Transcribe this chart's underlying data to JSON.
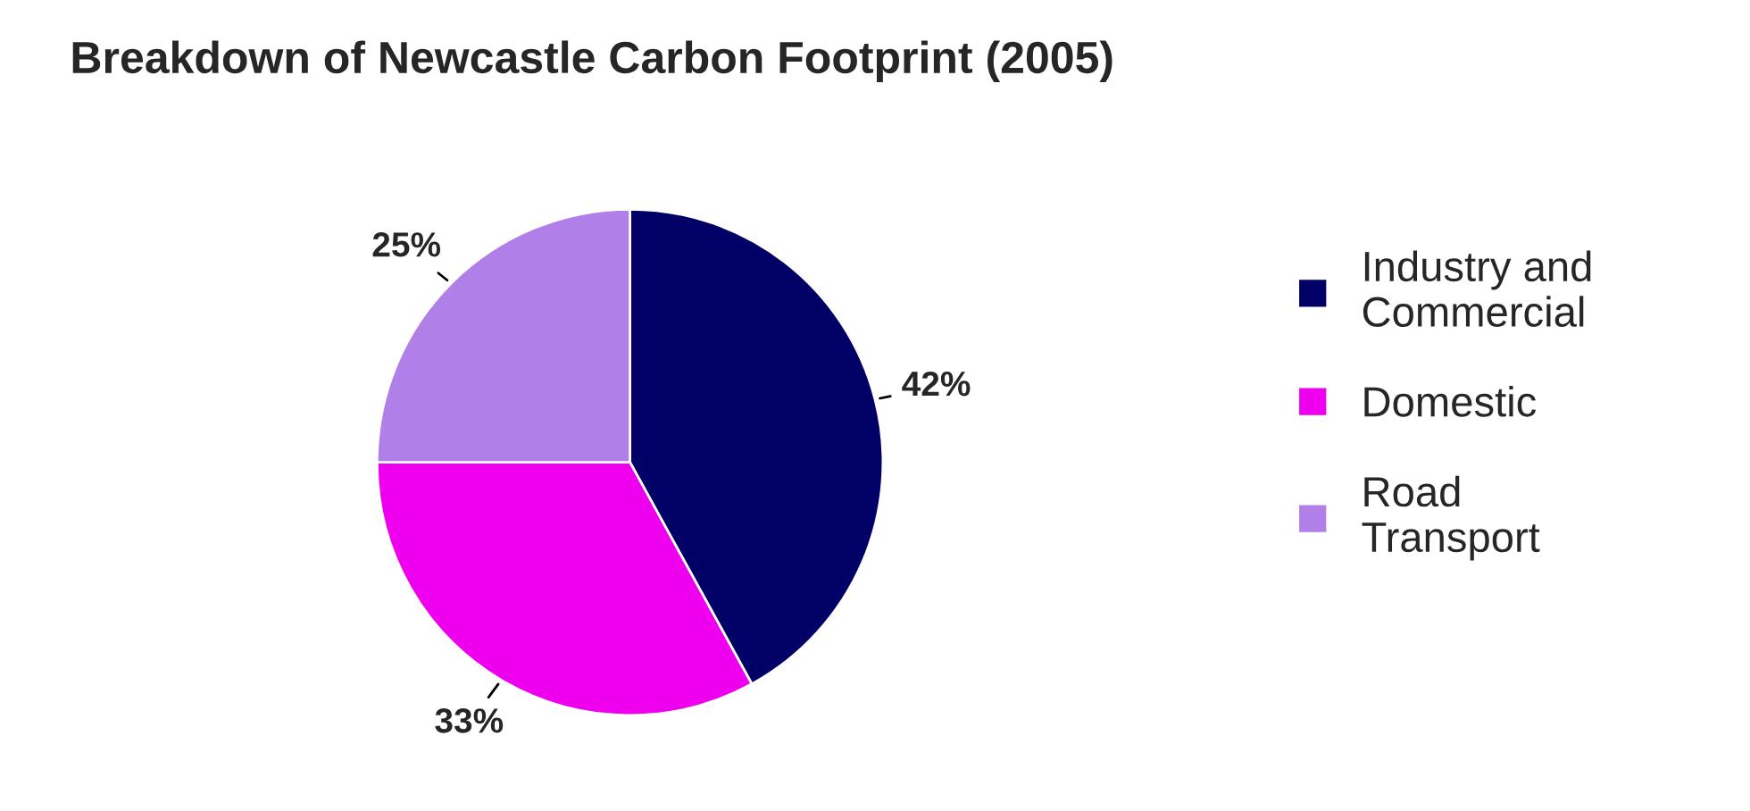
{
  "chart_data": {
    "type": "pie",
    "title": "Breakdown of Newcastle Carbon Footprint (2005)",
    "categories": [
      "Industry and\nCommercial",
      "Domestic",
      "Road\nTransport"
    ],
    "values": [
      42,
      33,
      25
    ],
    "value_labels": [
      "42%",
      "33%",
      "25%"
    ],
    "colors": [
      "#000066",
      "#ee00ee",
      "#b07fe8"
    ],
    "legend": "right"
  }
}
